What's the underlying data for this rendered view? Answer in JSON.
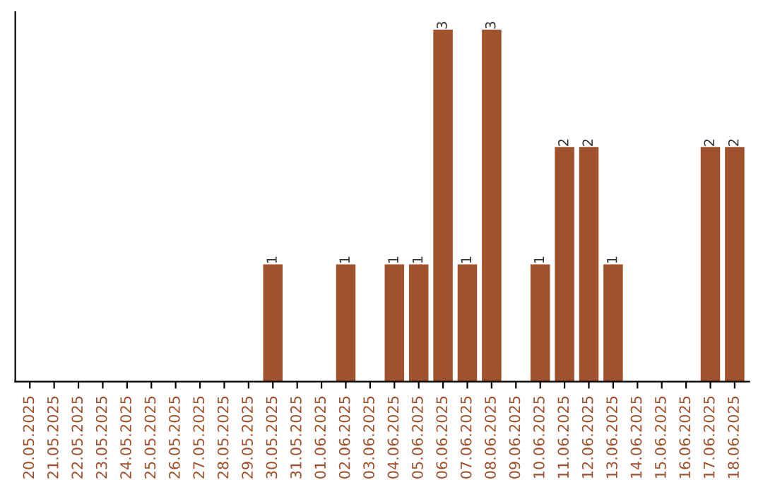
{
  "chart_data": {
    "type": "bar",
    "categories": [
      "20.05.2025",
      "21.05.2025",
      "22.05.2025",
      "23.05.2025",
      "24.05.2025",
      "25.05.2025",
      "26.05.2025",
      "27.05.2025",
      "28.05.2025",
      "29.05.2025",
      "30.05.2025",
      "31.05.2025",
      "01.06.2025",
      "02.06.2025",
      "03.06.2025",
      "04.06.2025",
      "05.06.2025",
      "06.06.2025",
      "07.06.2025",
      "08.06.2025",
      "09.06.2025",
      "10.06.2025",
      "11.06.2025",
      "12.06.2025",
      "13.06.2025",
      "14.06.2025",
      "15.06.2025",
      "16.06.2025",
      "17.06.2025",
      "18.06.2025"
    ],
    "values": [
      0,
      0,
      0,
      0,
      0,
      0,
      0,
      0,
      0,
      0,
      1,
      0,
      0,
      1,
      0,
      1,
      1,
      3,
      1,
      3,
      0,
      1,
      2,
      2,
      1,
      0,
      0,
      0,
      2,
      2
    ],
    "value_labels": [
      null,
      null,
      null,
      null,
      null,
      null,
      null,
      null,
      null,
      null,
      "1",
      null,
      null,
      "1",
      null,
      "1",
      "1",
      "3",
      "1",
      "3",
      null,
      "1",
      "2",
      "2",
      "1",
      null,
      null,
      null,
      "2",
      "2"
    ],
    "color": "#a0522d",
    "tick_labels": "x",
    "grid": false,
    "legend": false
  }
}
